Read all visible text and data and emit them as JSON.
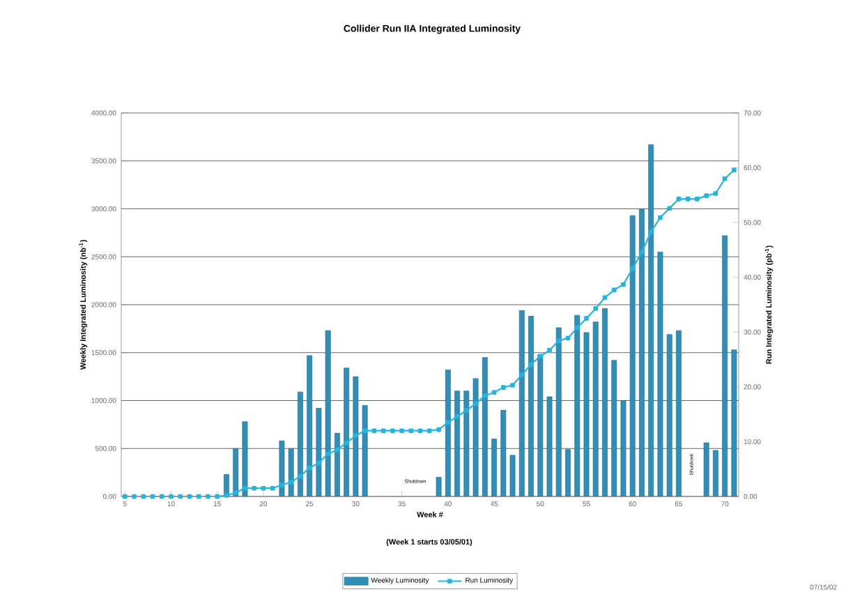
{
  "chart_data": {
    "type": "bar",
    "title": "Collider Run IIA Integrated Luminosity",
    "xlabel": "Week #",
    "ylabel": "Weekly Integrated Luminosity (nb$^{-1}$)",
    "y2label": "Run Integrated Luminosity (pb$^{-1}$)",
    "x": [
      5,
      6,
      7,
      8,
      9,
      10,
      11,
      12,
      13,
      14,
      15,
      16,
      17,
      18,
      19,
      20,
      21,
      22,
      23,
      24,
      25,
      26,
      27,
      28,
      29,
      30,
      31,
      32,
      33,
      34,
      35,
      36,
      37,
      38,
      39,
      40,
      41,
      42,
      43,
      44,
      45,
      46,
      47,
      48,
      49,
      50,
      51,
      52,
      53,
      54,
      55,
      56,
      57,
      58,
      59,
      60,
      61,
      62,
      63,
      64,
      65,
      66,
      67,
      68,
      69,
      70,
      71
    ],
    "series": [
      {
        "name": "Weekly Luminosity",
        "color": "#2f8fb8",
        "values": [
          null,
          null,
          null,
          null,
          null,
          null,
          null,
          null,
          null,
          null,
          null,
          230,
          500,
          780,
          null,
          null,
          null,
          580,
          500,
          1090,
          1470,
          920,
          1730,
          660,
          1340,
          1250,
          950,
          null,
          null,
          null,
          null,
          null,
          null,
          null,
          200,
          1320,
          1100,
          1100,
          1230,
          1450,
          600,
          900,
          430,
          1940,
          1880,
          1480,
          1040,
          1760,
          490,
          1890,
          1710,
          1820,
          1960,
          1420,
          1000,
          2930,
          3000,
          3670,
          2550,
          1690,
          1730,
          null,
          null,
          560,
          480,
          2720,
          1530
        ]
      },
      {
        "name": "Run Luminosity",
        "type": "line",
        "axis": "y2",
        "color": "#22b5e0",
        "marker": "square",
        "values": [
          0,
          0,
          0,
          0,
          0,
          0,
          0,
          0,
          0,
          0,
          0,
          0.2,
          0.7,
          1.5,
          1.5,
          1.5,
          1.5,
          2.1,
          2.6,
          3.7,
          5.2,
          6.1,
          7.8,
          8.5,
          9.8,
          11.1,
          12.0,
          12.0,
          12.0,
          12.0,
          12.0,
          12.0,
          12.0,
          12.0,
          12.2,
          13.5,
          14.6,
          15.7,
          16.9,
          18.4,
          19.0,
          19.9,
          20.3,
          22.2,
          24.1,
          25.6,
          26.7,
          28.4,
          28.9,
          30.8,
          32.5,
          34.3,
          36.3,
          37.7,
          38.7,
          41.6,
          44.6,
          48.3,
          50.9,
          52.6,
          54.3,
          54.3,
          54.3,
          54.9,
          55.3,
          58.0,
          59.6
        ]
      }
    ],
    "xlim": [
      4.6,
      71.5
    ],
    "xticks": [
      5,
      10,
      15,
      20,
      25,
      30,
      35,
      40,
      45,
      50,
      55,
      60,
      65,
      70
    ],
    "ylim": [
      0,
      4000
    ],
    "yticks": [
      {
        "value": 0,
        "label": "0.00"
      },
      {
        "value": 500,
        "label": "500.00"
      },
      {
        "value": 1000,
        "label": "1000.00"
      },
      {
        "value": 1500,
        "label": "1500.00"
      },
      {
        "value": 2000,
        "label": "2000.00"
      },
      {
        "value": 2500,
        "label": "2500.00"
      },
      {
        "value": 3000,
        "label": "3000.00"
      },
      {
        "value": 3500,
        "label": "3500.00"
      },
      {
        "value": 4000,
        "label": "4000.00"
      }
    ],
    "y2lim": [
      0,
      70
    ],
    "y2ticks": [
      {
        "value": 0,
        "label": "0.00"
      },
      {
        "value": 10,
        "label": "10.00"
      },
      {
        "value": 20,
        "label": "20.00"
      },
      {
        "value": 30,
        "label": "30.00"
      },
      {
        "value": 40,
        "label": "40.00"
      },
      {
        "value": 50,
        "label": "50.00"
      },
      {
        "value": 60,
        "label": "60.00"
      },
      {
        "value": 70,
        "label": "70.00"
      }
    ],
    "grid": "y",
    "legend": "bottom",
    "annotations": [
      "Shutdown",
      "Shutdown",
      "(Week 1 starts 03/05/01)",
      "07/15/02"
    ]
  }
}
